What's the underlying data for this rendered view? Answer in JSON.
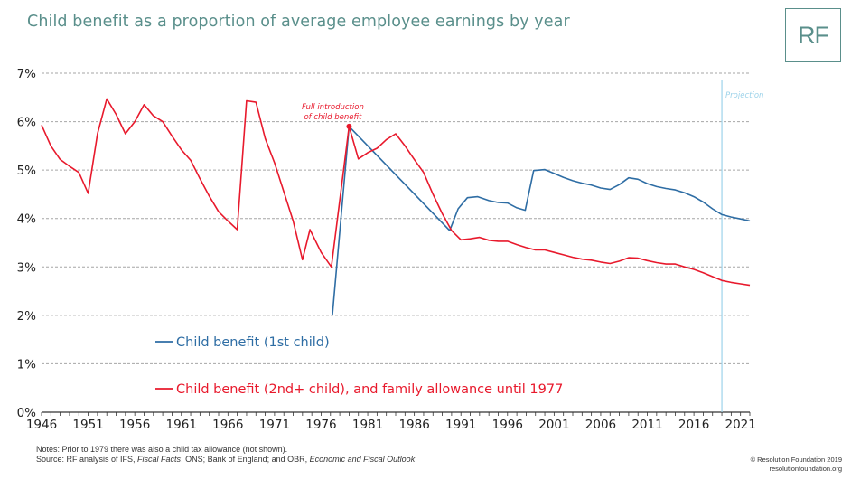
{
  "header": {
    "title": "Child benefit as a proportion of average employee earnings by year",
    "logo_text": "RF"
  },
  "footer": {
    "notes_line1": "Notes: Prior to 1979 there was also a child tax allowance (not shown).",
    "source_prefix": "Source: RF analysis of IFS, ",
    "source_fiscal_facts": "Fiscal Facts",
    "source_middle": "; ONS; Bank of England; and OBR, ",
    "source_efo": "Economic and Fiscal Outlook",
    "credit_line1": "© Resolution Foundation 2019",
    "credit_line2": "resolutionfoundation.org"
  },
  "colors": {
    "title": "#5a8f8b",
    "series_first_child": "#2e6da4",
    "series_second_child": "#e8192c",
    "projection_line": "#9dd3ea",
    "grid": "#a6a6a6"
  },
  "chart_data": {
    "type": "line",
    "title": "Child benefit as a proportion of average employee earnings by year",
    "xlabel": "",
    "ylabel": "",
    "xlim": [
      1946,
      2022
    ],
    "ylim": [
      0,
      7
    ],
    "y_ticks": [
      0,
      1,
      2,
      3,
      4,
      5,
      6,
      7
    ],
    "y_tick_labels": [
      "0%",
      "1%",
      "2%",
      "3%",
      "4%",
      "5%",
      "6%",
      "7%"
    ],
    "x_ticks": [
      1946,
      1951,
      1956,
      1961,
      1966,
      1971,
      1976,
      1981,
      1986,
      1991,
      1996,
      2001,
      2006,
      2011,
      2016,
      2021
    ],
    "x_tick_labels": [
      "1946",
      "1951",
      "1956",
      "1961",
      "1966",
      "1971",
      "1976",
      "1981",
      "1986",
      "1991",
      "1996",
      "2001",
      "2006",
      "2011",
      "2016",
      "2021"
    ],
    "grid": "horizontal dashed",
    "series": [
      {
        "name": "Child benefit (1st child)",
        "color": "#2e6da4",
        "points": [
          [
            1977.2,
            2.0
          ],
          [
            1979,
            5.9
          ],
          [
            1989.8,
            3.75
          ],
          [
            1990.7,
            4.2
          ],
          [
            1991.7,
            4.43
          ],
          [
            1992.8,
            4.45
          ],
          [
            1994,
            4.37
          ],
          [
            1995,
            4.33
          ],
          [
            1996,
            4.32
          ],
          [
            1997,
            4.22
          ],
          [
            1997.9,
            4.17
          ],
          [
            1998.8,
            4.99
          ],
          [
            2000,
            5.01
          ],
          [
            2001,
            4.93
          ],
          [
            2002,
            4.85
          ],
          [
            2003,
            4.78
          ],
          [
            2004,
            4.73
          ],
          [
            2005,
            4.69
          ],
          [
            2006,
            4.63
          ],
          [
            2007,
            4.6
          ],
          [
            2008,
            4.7
          ],
          [
            2009,
            4.84
          ],
          [
            2010,
            4.81
          ],
          [
            2011,
            4.72
          ],
          [
            2012,
            4.66
          ],
          [
            2013,
            4.62
          ],
          [
            2014,
            4.59
          ],
          [
            2015,
            4.53
          ],
          [
            2016,
            4.45
          ],
          [
            2017,
            4.34
          ],
          [
            2018,
            4.2
          ],
          [
            2019,
            4.08
          ],
          [
            2020,
            4.03
          ],
          [
            2021,
            3.99
          ],
          [
            2022,
            3.95
          ]
        ]
      },
      {
        "name": "Child benefit (2nd+ child), and family allowance until 1977",
        "color": "#e8192c",
        "points": [
          [
            1946,
            5.93
          ],
          [
            1947,
            5.5
          ],
          [
            1948,
            5.22
          ],
          [
            1949,
            5.08
          ],
          [
            1950,
            4.95
          ],
          [
            1951,
            4.52
          ],
          [
            1952,
            5.75
          ],
          [
            1953,
            6.47
          ],
          [
            1954,
            6.15
          ],
          [
            1955,
            5.75
          ],
          [
            1956,
            6.0
          ],
          [
            1957,
            6.35
          ],
          [
            1958,
            6.12
          ],
          [
            1959,
            6.0
          ],
          [
            1960,
            5.7
          ],
          [
            1961,
            5.42
          ],
          [
            1962,
            5.2
          ],
          [
            1963,
            4.82
          ],
          [
            1964,
            4.46
          ],
          [
            1965,
            4.14
          ],
          [
            1966,
            3.95
          ],
          [
            1967,
            3.77
          ],
          [
            1968,
            6.43
          ],
          [
            1969,
            6.4
          ],
          [
            1970,
            5.65
          ],
          [
            1971,
            5.15
          ],
          [
            1972,
            4.55
          ],
          [
            1973,
            3.95
          ],
          [
            1974,
            3.15
          ],
          [
            1974.8,
            3.77
          ],
          [
            1976,
            3.3
          ],
          [
            1977.1,
            3.0
          ],
          [
            1979,
            5.9
          ],
          [
            1980,
            5.23
          ],
          [
            1981,
            5.36
          ],
          [
            1982,
            5.45
          ],
          [
            1983,
            5.63
          ],
          [
            1984,
            5.75
          ],
          [
            1985,
            5.5
          ],
          [
            1986,
            5.22
          ],
          [
            1987,
            4.95
          ],
          [
            1988,
            4.5
          ],
          [
            1989,
            4.1
          ],
          [
            1990,
            3.75
          ],
          [
            1991,
            3.56
          ],
          [
            1992,
            3.58
          ],
          [
            1993,
            3.61
          ],
          [
            1994,
            3.55
          ],
          [
            1995,
            3.53
          ],
          [
            1996,
            3.53
          ],
          [
            1997,
            3.46
          ],
          [
            1998,
            3.4
          ],
          [
            1999,
            3.35
          ],
          [
            2000,
            3.35
          ],
          [
            2001,
            3.3
          ],
          [
            2002,
            3.25
          ],
          [
            2003,
            3.2
          ],
          [
            2004,
            3.16
          ],
          [
            2005,
            3.14
          ],
          [
            2006,
            3.1
          ],
          [
            2007,
            3.07
          ],
          [
            2008,
            3.12
          ],
          [
            2009,
            3.19
          ],
          [
            2010,
            3.18
          ],
          [
            2011,
            3.13
          ],
          [
            2012,
            3.09
          ],
          [
            2013,
            3.06
          ],
          [
            2014,
            3.06
          ],
          [
            2015,
            3.0
          ],
          [
            2016,
            2.95
          ],
          [
            2017,
            2.88
          ],
          [
            2018,
            2.8
          ],
          [
            2019,
            2.72
          ],
          [
            2020,
            2.68
          ],
          [
            2021,
            2.65
          ],
          [
            2022,
            2.62
          ]
        ]
      }
    ],
    "projection": {
      "label": "Projection",
      "x": 2019
    },
    "annotation": {
      "line1": "Full introduction",
      "line2": "of child benefit",
      "x": 1979,
      "y": 5.9
    },
    "legend": [
      {
        "label": "Child benefit (1st child)",
        "color": "#2e6da4"
      },
      {
        "label": "Child benefit (2nd+ child), and family allowance until 1977",
        "color": "#e8192c"
      }
    ]
  }
}
